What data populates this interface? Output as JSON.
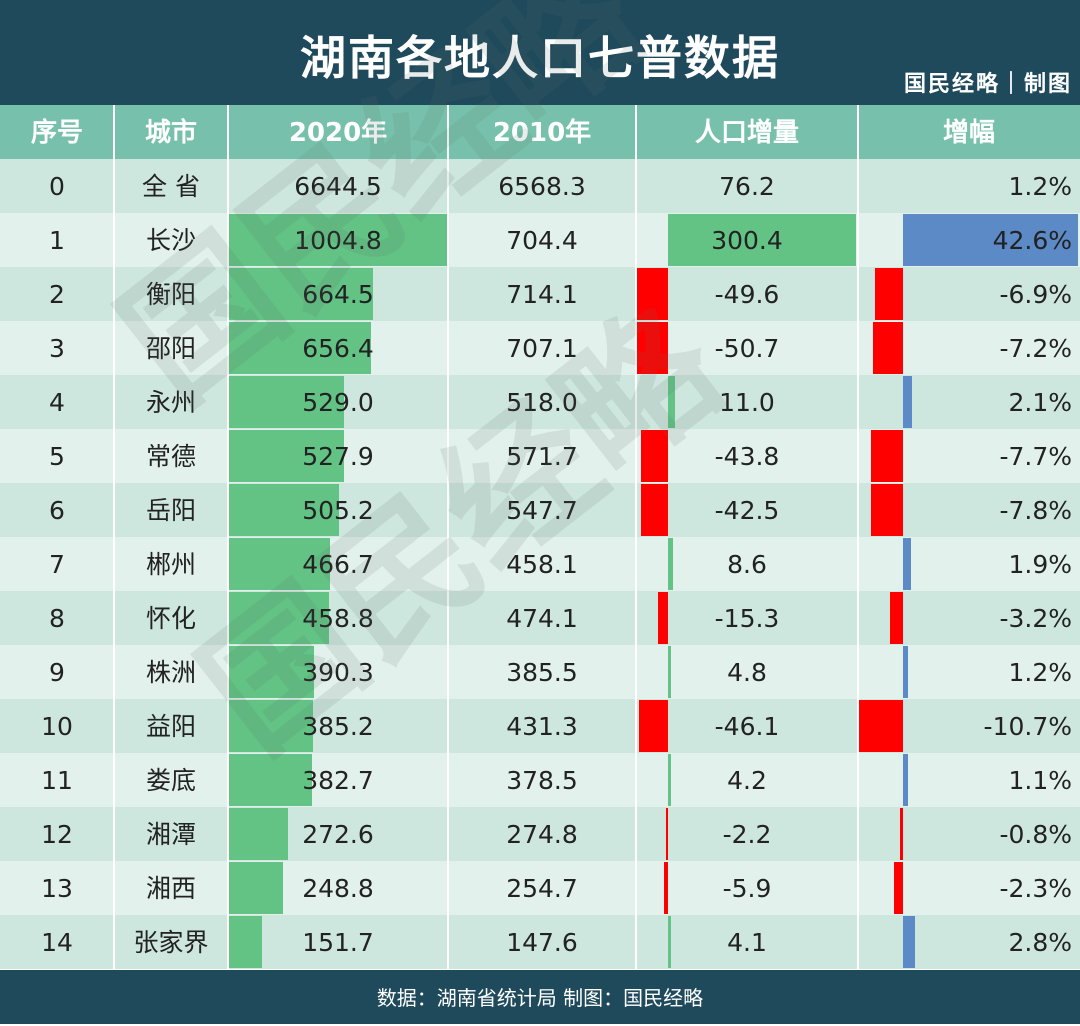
{
  "title": "湖南各地人口七普数据",
  "brand": "国民经略｜制图",
  "footer": "数据：湖南省统计局 制图：国民经略",
  "watermark": "国民经略",
  "colors": {
    "header_bg": "#1f4a5c",
    "col_header_bg": "#77c1ac",
    "row_bg_a": "#cde6de",
    "row_bg_b": "#e2f1ec",
    "bar_2020": "#62c385",
    "bar_increase": "#62c385",
    "bar_decrease": "#ff0000",
    "bar_growth_pos": "#5b8ac6",
    "bar_growth_neg": "#ff0000"
  },
  "chart_data": {
    "type": "table",
    "title": "湖南各地人口七普数据",
    "columns": [
      "序号",
      "城市",
      "2020年",
      "2010年",
      "人口增量",
      "增幅"
    ],
    "rows": [
      {
        "idx": "0",
        "city": "全 省",
        "p2020": "6644.5",
        "p2010": "6568.3",
        "delta": "76.2",
        "growth": "1.2%"
      },
      {
        "idx": "1",
        "city": "长沙",
        "p2020": "1004.8",
        "p2010": "704.4",
        "delta": "300.4",
        "growth": "42.6%"
      },
      {
        "idx": "2",
        "city": "衡阳",
        "p2020": "664.5",
        "p2010": "714.1",
        "delta": "-49.6",
        "growth": "-6.9%"
      },
      {
        "idx": "3",
        "city": "邵阳",
        "p2020": "656.4",
        "p2010": "707.1",
        "delta": "-50.7",
        "growth": "-7.2%"
      },
      {
        "idx": "4",
        "city": "永州",
        "p2020": "529.0",
        "p2010": "518.0",
        "delta": "11.0",
        "growth": "2.1%"
      },
      {
        "idx": "5",
        "city": "常德",
        "p2020": "527.9",
        "p2010": "571.7",
        "delta": "-43.8",
        "growth": "-7.7%"
      },
      {
        "idx": "6",
        "city": "岳阳",
        "p2020": "505.2",
        "p2010": "547.7",
        "delta": "-42.5",
        "growth": "-7.8%"
      },
      {
        "idx": "7",
        "city": "郴州",
        "p2020": "466.7",
        "p2010": "458.1",
        "delta": "8.6",
        "growth": "1.9%"
      },
      {
        "idx": "8",
        "city": "怀化",
        "p2020": "458.8",
        "p2010": "474.1",
        "delta": "-15.3",
        "growth": "-3.2%"
      },
      {
        "idx": "9",
        "city": "株洲",
        "p2020": "390.3",
        "p2010": "385.5",
        "delta": "4.8",
        "growth": "1.2%"
      },
      {
        "idx": "10",
        "city": "益阳",
        "p2020": "385.2",
        "p2010": "431.3",
        "delta": "-46.1",
        "growth": "-10.7%"
      },
      {
        "idx": "11",
        "city": "娄底",
        "p2020": "382.7",
        "p2010": "378.5",
        "delta": "4.2",
        "growth": "1.1%"
      },
      {
        "idx": "12",
        "city": "湘潭",
        "p2020": "272.6",
        "p2010": "274.8",
        "delta": "-2.2",
        "growth": "-0.8%"
      },
      {
        "idx": "13",
        "city": "湘西",
        "p2020": "248.8",
        "p2010": "254.7",
        "delta": "-5.9",
        "growth": "-2.3%"
      },
      {
        "idx": "14",
        "city": "张家界",
        "p2020": "151.7",
        "p2010": "147.6",
        "delta": "4.1",
        "growth": "2.8%"
      }
    ]
  }
}
